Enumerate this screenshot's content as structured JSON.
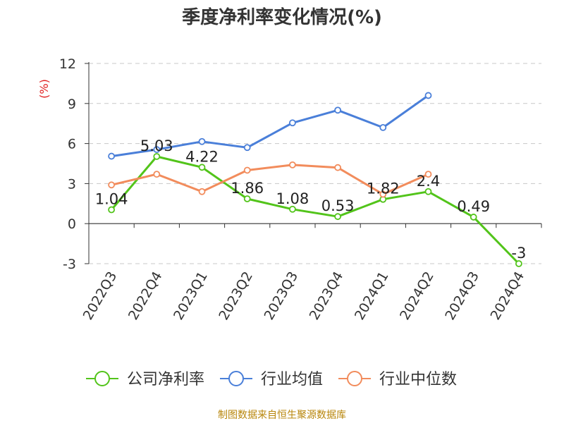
{
  "title": "季度净利率变化情况(%)",
  "source_note": "制图数据来自恒生聚源数据库",
  "chart_data": {
    "type": "line",
    "title": "季度净利率变化情况(%)",
    "ylabel": "(%)",
    "xlabel": "",
    "ylim": [
      -3,
      12
    ],
    "yticks": [
      -3,
      0,
      3,
      6,
      9,
      12
    ],
    "grid": true,
    "legend_position": "bottom",
    "categories": [
      "2022Q3",
      "2022Q4",
      "2023Q1",
      "2023Q2",
      "2023Q3",
      "2023Q4",
      "2024Q1",
      "2024Q2",
      "2024Q3",
      "2024Q4"
    ],
    "series": [
      {
        "name": "公司净利率",
        "color": "#52c41a",
        "values": [
          1.04,
          5.03,
          4.22,
          1.86,
          1.08,
          0.53,
          1.82,
          2.4,
          0.49,
          -3
        ],
        "labels": [
          "1.04",
          "5.03",
          "4.22",
          "1.86",
          "1.08",
          "0.53",
          "1.82",
          "2.4",
          "0.49",
          "-3"
        ]
      },
      {
        "name": "行业均值",
        "color": "#4a7fd9",
        "values": [
          5.05,
          5.55,
          6.15,
          5.7,
          7.55,
          8.5,
          7.2,
          9.6,
          null,
          null
        ]
      },
      {
        "name": "行业中位数",
        "color": "#f28c5c",
        "values": [
          2.9,
          3.7,
          2.4,
          4.0,
          4.4,
          4.2,
          2.2,
          3.7,
          null,
          null
        ]
      }
    ]
  }
}
